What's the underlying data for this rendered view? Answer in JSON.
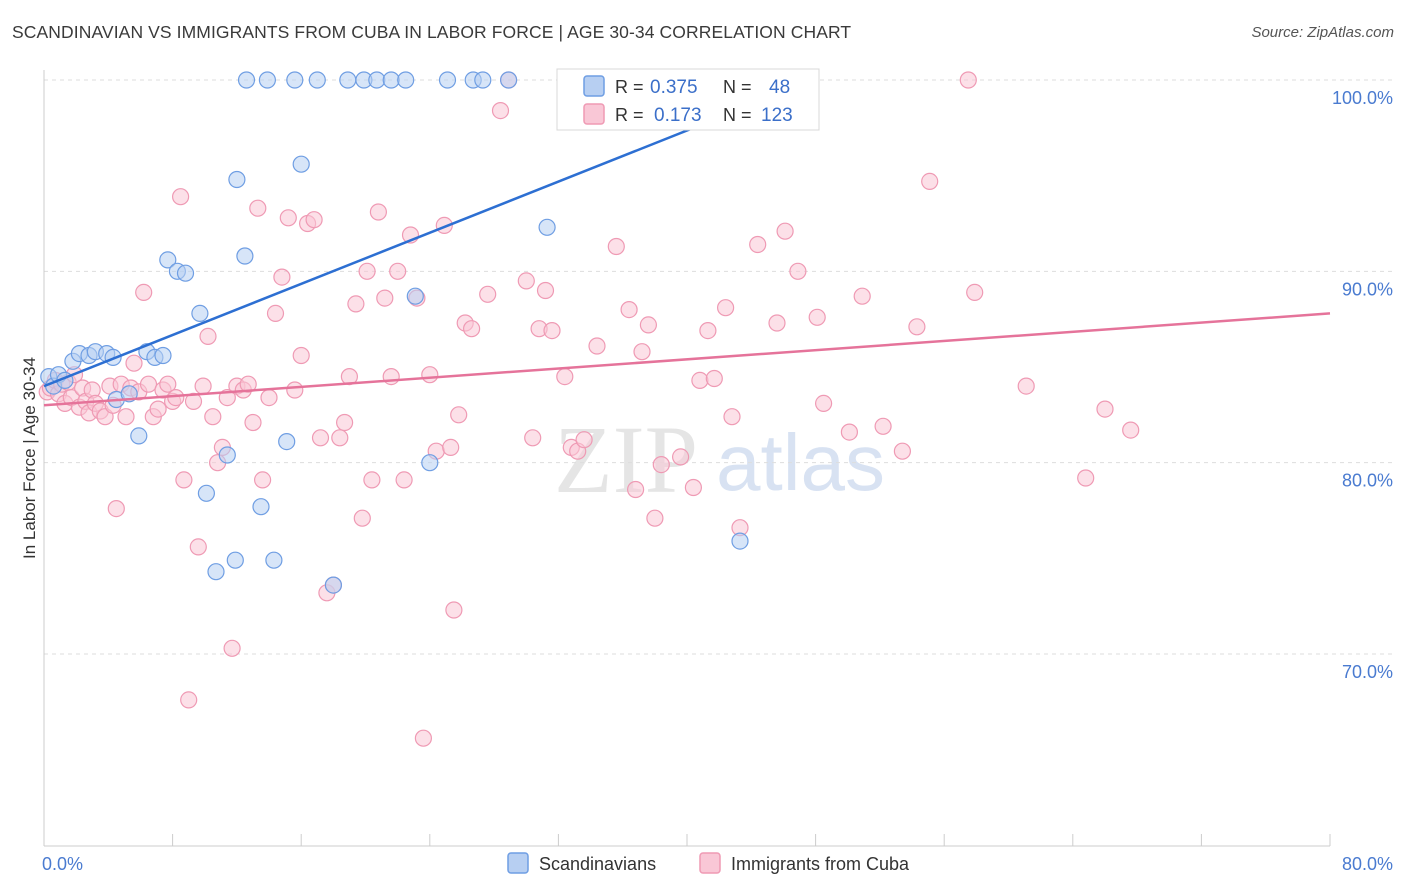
{
  "header": {
    "title": "SCANDINAVIAN VS IMMIGRANTS FROM CUBA IN LABOR FORCE | AGE 30-34 CORRELATION CHART",
    "source": "Source: ZipAtlas.com"
  },
  "watermark": {
    "zip": "ZIP",
    "atlas": "atlas"
  },
  "colors": {
    "blue_fill": "#b7cff2",
    "blue_stroke": "#6f9ee3",
    "blue_line": "#2d6fd2",
    "pink_fill": "#f9c7d6",
    "pink_stroke": "#ef9ab4",
    "pink_line": "#e5739a",
    "tick_text": "#4a7bd0",
    "grid": "#dddddd"
  },
  "legend": {
    "rows": [
      {
        "r_label": "R =",
        "r_value": "0.375",
        "n_label": "N =",
        "n_value": "48"
      },
      {
        "r_label": "R =",
        "r_value": "0.173",
        "n_label": "N =",
        "n_value": "123"
      }
    ]
  },
  "bottom_legend": {
    "items": [
      "Scandinavians",
      "Immigrants from Cuba"
    ]
  },
  "chart_data": {
    "type": "scatter",
    "title": "SCANDINAVIAN VS IMMIGRANTS FROM CUBA IN LABOR FORCE | AGE 30-34 CORRELATION CHART",
    "xlabel": "",
    "ylabel": "In Labor Force | Age 30-34",
    "xlim": [
      0,
      80
    ],
    "ylim": [
      59,
      101.5
    ],
    "y_ticks": [
      70,
      80,
      90,
      100
    ],
    "y_tick_labels": [
      "70.0%",
      "80.0%",
      "90.0%",
      "100.0%"
    ],
    "x_tick_labels": [
      "0.0%",
      "80.0%"
    ],
    "series": [
      {
        "name": "Scandinavians",
        "R": 0.375,
        "N": 48,
        "trend": {
          "x": [
            0,
            47.9
          ],
          "y": [
            84.0,
            100.0
          ]
        },
        "points": [
          [
            0.3,
            84.5
          ],
          [
            0.6,
            84.0
          ],
          [
            0.9,
            84.6
          ],
          [
            1.3,
            84.3
          ],
          [
            1.8,
            85.3
          ],
          [
            2.2,
            85.7
          ],
          [
            2.8,
            85.6
          ],
          [
            3.2,
            85.8
          ],
          [
            3.9,
            85.7
          ],
          [
            4.3,
            85.5
          ],
          [
            4.5,
            83.3
          ],
          [
            5.3,
            83.6
          ],
          [
            5.9,
            81.4
          ],
          [
            6.4,
            85.8
          ],
          [
            6.9,
            85.5
          ],
          [
            7.4,
            85.6
          ],
          [
            7.7,
            90.6
          ],
          [
            8.3,
            90.0
          ],
          [
            8.8,
            89.9
          ],
          [
            9.7,
            87.8
          ],
          [
            10.1,
            78.4
          ],
          [
            10.7,
            74.3
          ],
          [
            11.4,
            80.4
          ],
          [
            11.9,
            74.9
          ],
          [
            12.0,
            94.8
          ],
          [
            12.5,
            90.8
          ],
          [
            12.6,
            100.0
          ],
          [
            13.5,
            77.7
          ],
          [
            13.9,
            100.0
          ],
          [
            14.3,
            74.9
          ],
          [
            15.1,
            81.1
          ],
          [
            15.6,
            100.0
          ],
          [
            16.0,
            95.6
          ],
          [
            17.0,
            100.0
          ],
          [
            18.0,
            73.6
          ],
          [
            18.9,
            100.0
          ],
          [
            19.9,
            100.0
          ],
          [
            20.7,
            100.0
          ],
          [
            21.6,
            100.0
          ],
          [
            22.5,
            100.0
          ],
          [
            23.1,
            88.7
          ],
          [
            24.0,
            80.0
          ],
          [
            25.1,
            100.0
          ],
          [
            26.7,
            100.0
          ],
          [
            27.3,
            100.0
          ],
          [
            28.9,
            100.0
          ],
          [
            31.3,
            92.3
          ],
          [
            43.3,
            75.9
          ]
        ]
      },
      {
        "name": "Immigrants from Cuba",
        "R": 0.173,
        "N": 123,
        "trend": {
          "x": [
            0,
            80
          ],
          "y": [
            83.0,
            87.8
          ]
        },
        "points": [
          [
            0.2,
            83.7
          ],
          [
            0.4,
            83.9
          ],
          [
            0.7,
            84.3
          ],
          [
            0.9,
            83.6
          ],
          [
            1.1,
            84.1
          ],
          [
            1.3,
            83.1
          ],
          [
            1.5,
            84.2
          ],
          [
            1.7,
            83.4
          ],
          [
            1.9,
            84.6
          ],
          [
            2.2,
            82.9
          ],
          [
            2.4,
            83.9
          ],
          [
            2.6,
            83.2
          ],
          [
            2.8,
            82.6
          ],
          [
            3.0,
            83.8
          ],
          [
            3.2,
            83.1
          ],
          [
            3.5,
            82.7
          ],
          [
            3.8,
            82.4
          ],
          [
            4.1,
            84.0
          ],
          [
            4.3,
            83.0
          ],
          [
            4.5,
            77.6
          ],
          [
            4.8,
            84.1
          ],
          [
            5.1,
            82.4
          ],
          [
            5.4,
            83.9
          ],
          [
            5.6,
            85.2
          ],
          [
            5.9,
            83.7
          ],
          [
            6.2,
            88.9
          ],
          [
            6.5,
            84.1
          ],
          [
            6.8,
            82.4
          ],
          [
            7.1,
            82.8
          ],
          [
            7.4,
            83.8
          ],
          [
            7.7,
            84.1
          ],
          [
            8.0,
            83.2
          ],
          [
            8.2,
            83.4
          ],
          [
            8.5,
            93.9
          ],
          [
            8.7,
            79.1
          ],
          [
            9.0,
            67.6
          ],
          [
            9.3,
            83.2
          ],
          [
            9.6,
            75.6
          ],
          [
            9.9,
            84.0
          ],
          [
            10.2,
            86.6
          ],
          [
            10.5,
            82.4
          ],
          [
            10.8,
            80.0
          ],
          [
            11.1,
            80.8
          ],
          [
            11.4,
            83.4
          ],
          [
            11.7,
            70.3
          ],
          [
            12.0,
            84.0
          ],
          [
            12.4,
            83.8
          ],
          [
            12.7,
            84.1
          ],
          [
            13.0,
            82.1
          ],
          [
            13.3,
            93.3
          ],
          [
            13.6,
            79.1
          ],
          [
            14.0,
            83.4
          ],
          [
            14.4,
            87.8
          ],
          [
            14.8,
            89.7
          ],
          [
            15.2,
            92.8
          ],
          [
            15.6,
            83.8
          ],
          [
            16.0,
            85.6
          ],
          [
            16.4,
            92.5
          ],
          [
            16.8,
            92.7
          ],
          [
            17.2,
            81.3
          ],
          [
            17.6,
            73.2
          ],
          [
            18.0,
            73.6
          ],
          [
            18.4,
            81.3
          ],
          [
            18.7,
            82.1
          ],
          [
            19.0,
            84.5
          ],
          [
            19.4,
            88.3
          ],
          [
            19.8,
            77.1
          ],
          [
            20.1,
            90.0
          ],
          [
            20.4,
            79.1
          ],
          [
            20.8,
            93.1
          ],
          [
            21.2,
            88.6
          ],
          [
            21.6,
            84.5
          ],
          [
            22.0,
            90.0
          ],
          [
            22.4,
            79.1
          ],
          [
            22.8,
            91.9
          ],
          [
            23.2,
            88.6
          ],
          [
            23.6,
            65.6
          ],
          [
            24.0,
            84.6
          ],
          [
            24.4,
            80.6
          ],
          [
            24.9,
            92.4
          ],
          [
            25.3,
            80.8
          ],
          [
            25.5,
            72.3
          ],
          [
            25.8,
            82.5
          ],
          [
            26.2,
            87.3
          ],
          [
            26.6,
            87.0
          ],
          [
            27.6,
            88.8
          ],
          [
            28.4,
            98.4
          ],
          [
            28.9,
            100.0
          ],
          [
            30.0,
            89.5
          ],
          [
            30.4,
            81.3
          ],
          [
            30.8,
            87.0
          ],
          [
            31.2,
            89.0
          ],
          [
            31.6,
            86.9
          ],
          [
            32.4,
            84.5
          ],
          [
            32.8,
            80.8
          ],
          [
            33.2,
            80.6
          ],
          [
            33.6,
            81.2
          ],
          [
            34.4,
            86.1
          ],
          [
            35.6,
            91.3
          ],
          [
            36.4,
            88.0
          ],
          [
            36.8,
            78.6
          ],
          [
            37.2,
            85.8
          ],
          [
            37.6,
            87.2
          ],
          [
            38.0,
            77.1
          ],
          [
            38.4,
            79.9
          ],
          [
            39.6,
            80.3
          ],
          [
            40.4,
            78.7
          ],
          [
            40.8,
            84.3
          ],
          [
            41.3,
            86.9
          ],
          [
            41.7,
            84.4
          ],
          [
            42.4,
            88.1
          ],
          [
            42.8,
            82.4
          ],
          [
            43.3,
            76.6
          ],
          [
            44.4,
            91.4
          ],
          [
            45.6,
            87.3
          ],
          [
            46.1,
            92.1
          ],
          [
            46.9,
            90.0
          ],
          [
            48.1,
            87.6
          ],
          [
            48.5,
            83.1
          ],
          [
            50.1,
            81.6
          ],
          [
            50.9,
            88.7
          ],
          [
            52.2,
            81.9
          ],
          [
            53.4,
            80.6
          ],
          [
            54.3,
            87.1
          ],
          [
            55.1,
            94.7
          ],
          [
            57.5,
            100.0
          ],
          [
            57.9,
            88.9
          ],
          [
            61.1,
            84.0
          ],
          [
            64.8,
            79.2
          ],
          [
            66.0,
            82.8
          ],
          [
            67.6,
            81.7
          ]
        ]
      }
    ]
  }
}
